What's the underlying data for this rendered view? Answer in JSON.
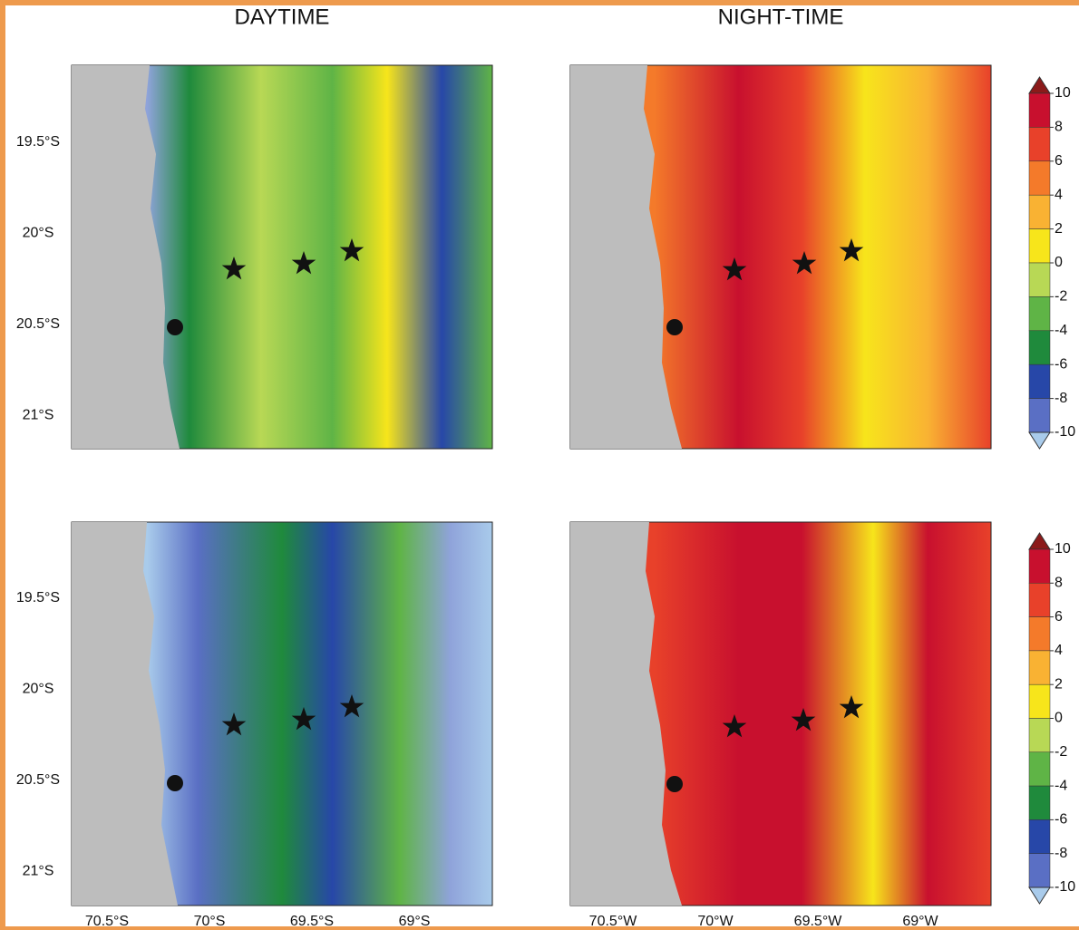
{
  "titles": [
    "DAYTIME",
    "NIGHT-TIME"
  ],
  "y_ticks": [
    "19.5°S",
    "20°S",
    "20.5°S",
    "21°S"
  ],
  "x_ticks_left": [
    "70.5°S",
    "70°S",
    "69.5°S",
    "69°S"
  ],
  "x_ticks_right": [
    "70.5°W",
    "70°W",
    "69.5°W",
    "69°W"
  ],
  "colorbar": {
    "labels": [
      10,
      8,
      6,
      4,
      2,
      0,
      -2,
      -4,
      -6,
      -8,
      -10
    ],
    "colors": [
      "#8b1a1a",
      "#c8102e",
      "#e8412a",
      "#f47a2a",
      "#f9b233",
      "#f7e51b",
      "#b8d855",
      "#5fb446",
      "#1f8a3c",
      "#2747a8",
      "#5a6fc4",
      "#8fa3da",
      "#a9cbeb"
    ]
  }
}
